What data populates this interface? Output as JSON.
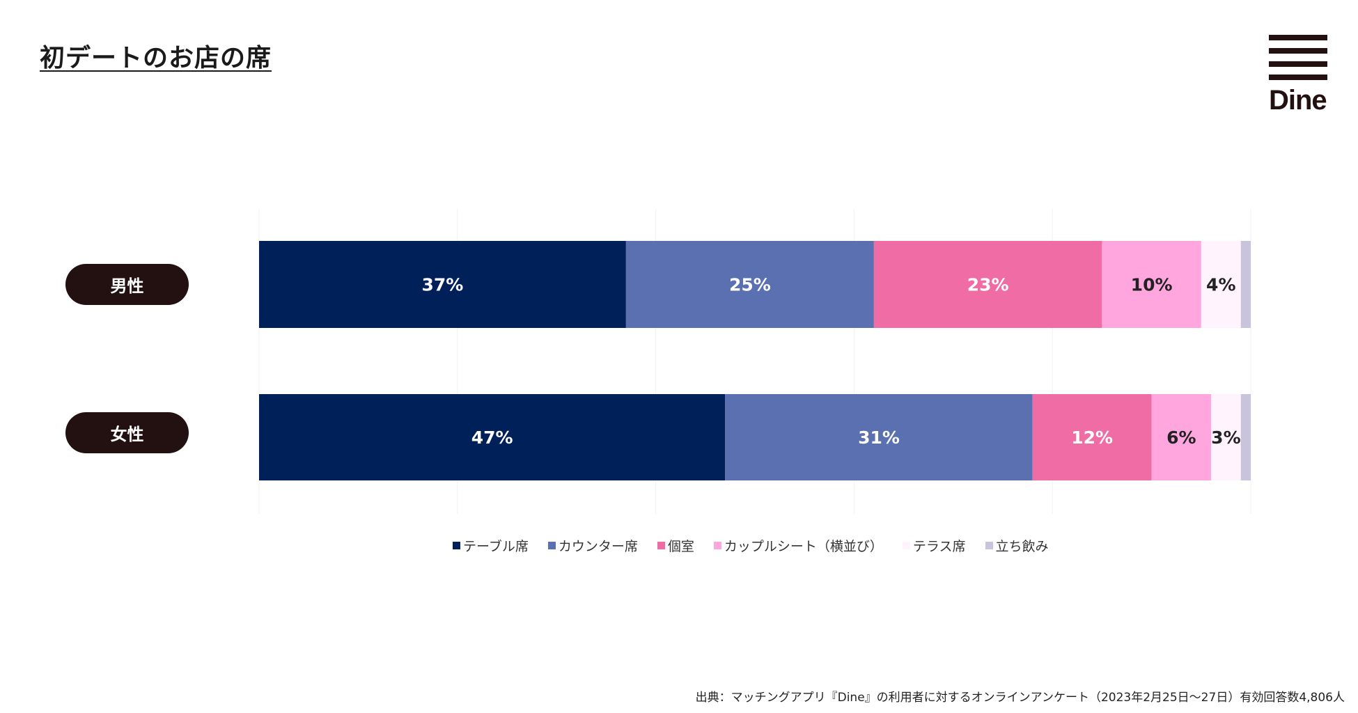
{
  "title": "初デートのお店の席",
  "logo": "Dine",
  "source": "出典：マッチングアプリ『Dine』の利用者に対するオンラインアンケート（2023年2月25日〜27日）有効回答数4,806人",
  "chart_data": {
    "type": "bar",
    "orientation": "horizontal",
    "stacked": true,
    "title": "初デートのお店の席",
    "categories": [
      "男性",
      "女性"
    ],
    "xlim": [
      0,
      100
    ],
    "grid": true,
    "legend_position": "bottom",
    "series": [
      {
        "name": "テーブル席",
        "color": "#00205a",
        "values": [
          37,
          47
        ],
        "labels": [
          "37%",
          "47%"
        ],
        "label_color": "#ffffff"
      },
      {
        "name": "カウンター席",
        "color": "#5b70b0",
        "values": [
          25,
          31
        ],
        "labels": [
          "25%",
          "31%"
        ],
        "label_color": "#ffffff"
      },
      {
        "name": "個室",
        "color": "#f06ca4",
        "values": [
          23,
          12
        ],
        "labels": [
          "23%",
          "12%"
        ],
        "label_color": "#ffffff"
      },
      {
        "name": "カップルシート（横並び）",
        "color": "#ffa6df",
        "values": [
          10,
          6
        ],
        "labels": [
          "10%",
          "6%"
        ],
        "label_color": "#222222"
      },
      {
        "name": "テラス席",
        "color": "#fff3fd",
        "values": [
          4,
          3
        ],
        "labels": [
          "4%",
          "3%"
        ],
        "label_color": "#222222"
      },
      {
        "name": "立ち飲み",
        "color": "#c9c3dc",
        "values": [
          1,
          1
        ],
        "labels": [
          "",
          ""
        ],
        "label_color": "#222222"
      }
    ]
  }
}
